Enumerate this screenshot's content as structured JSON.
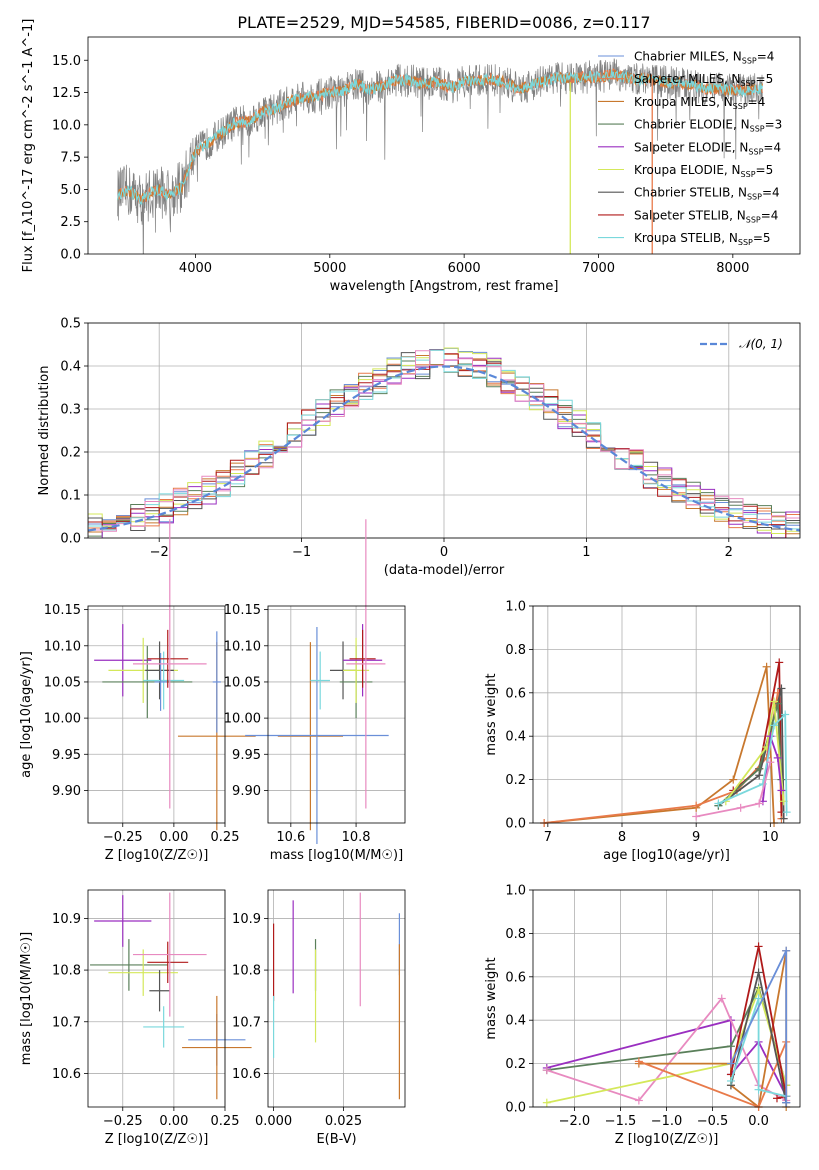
{
  "colors": {
    "Chabrier MILES": "#6a8fd8",
    "Salpeter MILES": "#e87a4a",
    "Kroupa MILES": "#c8782e",
    "Chabrier ELODIE": "#5a7f5a",
    "Salpeter ELODIE": "#9a2fc0",
    "Kroupa ELODIE": "#d4e85a",
    "Chabrier STELIB": "#555555",
    "Salpeter STELIB": "#b01a1a",
    "Kroupa STELIB": "#7ad8dc",
    "pink": "#e88ac0",
    "normal": "#5a88d8"
  },
  "chart_data": [
    {
      "id": "spectrum",
      "type": "line",
      "title": "PLATE=2529, MJD=54585, FIBERID=0086, z=0.117",
      "xlabel": "wavelength [Angstrom, rest frame]",
      "ylabel": "Flux [f_λ10^-17 erg cm^-2 s^-1 A^-1]",
      "xlim": [
        3200,
        8500
      ],
      "ylim": [
        0,
        16.8
      ],
      "xticks": [
        "4000",
        "5000",
        "6000",
        "7000",
        "8000"
      ],
      "yticks": [
        "0.0",
        "2.5",
        "5.0",
        "7.5",
        "10.0",
        "12.5",
        "15.0"
      ],
      "legend_position": "top-right",
      "legend": [
        {
          "name": "Chabrier MILES",
          "nssp": "4"
        },
        {
          "name": "Salpeter MILES",
          "nssp": "5"
        },
        {
          "name": "Kroupa MILES",
          "nssp": "4"
        },
        {
          "name": "Chabrier ELODIE",
          "nssp": "3"
        },
        {
          "name": "Salpeter ELODIE",
          "nssp": "4"
        },
        {
          "name": "Kroupa ELODIE",
          "nssp": "5"
        },
        {
          "name": "Chabrier STELIB",
          "nssp": "4"
        },
        {
          "name": "Salpeter STELIB",
          "nssp": "4"
        },
        {
          "name": "Kroupa STELIB",
          "nssp": "5"
        }
      ],
      "continuum": [
        [
          3420,
          4.6
        ],
        [
          3500,
          4.9
        ],
        [
          3600,
          4.2
        ],
        [
          3700,
          5.0
        ],
        [
          3800,
          4.6
        ],
        [
          3900,
          5.2
        ],
        [
          4000,
          8.0
        ],
        [
          4100,
          8.6
        ],
        [
          4200,
          9.4
        ],
        [
          4300,
          10.2
        ],
        [
          4400,
          10.3
        ],
        [
          4500,
          11.0
        ],
        [
          4600,
          11.3
        ],
        [
          4700,
          11.8
        ],
        [
          4800,
          12.1
        ],
        [
          4900,
          12.2
        ],
        [
          5000,
          12.5
        ],
        [
          5100,
          12.6
        ],
        [
          5200,
          13.2
        ],
        [
          5300,
          12.7
        ],
        [
          5400,
          13.1
        ],
        [
          5500,
          13.5
        ],
        [
          5600,
          13.4
        ],
        [
          5700,
          13.2
        ],
        [
          5800,
          13.3
        ],
        [
          5900,
          12.9
        ],
        [
          6000,
          13.3
        ],
        [
          6100,
          13.4
        ],
        [
          6200,
          13.5
        ],
        [
          6300,
          13.3
        ],
        [
          6400,
          12.8
        ],
        [
          6500,
          13.1
        ],
        [
          6600,
          13.4
        ],
        [
          6700,
          13.7
        ],
        [
          6800,
          13.6
        ],
        [
          6900,
          13.7
        ],
        [
          7000,
          13.7
        ],
        [
          7100,
          13.9
        ],
        [
          7200,
          13.7
        ],
        [
          7300,
          13.5
        ],
        [
          7400,
          13.6
        ],
        [
          7500,
          13.3
        ],
        [
          7600,
          13.2
        ],
        [
          7700,
          13.1
        ],
        [
          7800,
          12.8
        ],
        [
          7900,
          12.8
        ],
        [
          8000,
          12.7
        ],
        [
          8100,
          12.7
        ],
        [
          8200,
          12.8
        ]
      ]
    },
    {
      "id": "residuals",
      "type": "line",
      "xlabel": "(data-model)/error",
      "ylabel": "Normed distribution",
      "xlim": [
        -2.5,
        2.5
      ],
      "ylim": [
        0,
        0.5
      ],
      "xticks": [
        "−2",
        "−1",
        "0",
        "1",
        "2"
      ],
      "yticks": [
        "0.0",
        "0.1",
        "0.2",
        "0.3",
        "0.4",
        "0.5"
      ],
      "grid": true,
      "legend_position": "top-right",
      "legend_label": "𝒩(0, 1)"
    },
    {
      "id": "age_vs_Z",
      "type": "scatter",
      "xlabel": "Z [log10(Z/Z☉)]",
      "ylabel": "age [log10(age/yr)]",
      "xlim": [
        -0.42,
        0.25
      ],
      "ylim": [
        9.855,
        10.155
      ],
      "xticks": [
        "−0.25",
        "0.00",
        "0.25"
      ],
      "yticks": [
        "9.90",
        "9.95",
        "10.00",
        "10.05",
        "10.10",
        "10.15"
      ],
      "points": [
        {
          "c": "Salpeter ELODIE",
          "x": -0.25,
          "y": 10.08,
          "xerr": 0.14,
          "yerr": 0.05
        },
        {
          "c": "Kroupa ELODIE",
          "x": -0.15,
          "y": 10.066,
          "xerr": 0.17,
          "yerr": 0.045
        },
        {
          "c": "Chabrier ELODIE",
          "x": -0.13,
          "y": 10.05,
          "xerr": 0.22,
          "yerr": 0.05
        },
        {
          "c": "Chabrier STELIB",
          "x": -0.07,
          "y": 10.066,
          "xerr": 0.07,
          "yerr": 0.04
        },
        {
          "c": "Kroupa STELIB",
          "x": -0.05,
          "y": 10.052,
          "xerr": 0.1,
          "yerr": 0.04
        },
        {
          "c": "Chabrier MILES",
          "x": -0.065,
          "y": 10.05,
          "xerr": 0.03,
          "yerr": 0.04
        },
        {
          "c": "Salpeter STELIB",
          "x": -0.03,
          "y": 10.082,
          "xerr": 0.1,
          "yerr": 0.04
        },
        {
          "c": "pink",
          "x": -0.02,
          "y": 10.075,
          "xerr": 0.18,
          "yerr": 0.2
        },
        {
          "c": "Kroupa MILES",
          "x": 0.21,
          "y": 9.975,
          "xerr": 0.19,
          "yerr": 0.13
        },
        {
          "c": "Chabrier MILES",
          "x": 0.21,
          "y": 10.05,
          "xerr": 0.02,
          "yerr": 0.07
        }
      ]
    },
    {
      "id": "age_vs_mass",
      "type": "scatter",
      "xlabel": "mass [log10(M/M☉)]",
      "ylabel": "",
      "xlim": [
        10.53,
        10.95
      ],
      "ylim": [
        9.855,
        10.155
      ],
      "xticks": [
        "10.6",
        "10.8"
      ],
      "yticks": [
        "9.90",
        "9.95",
        "10.00",
        "10.05",
        "10.10",
        "10.15"
      ],
      "points": [
        {
          "c": "Kroupa MILES",
          "x": 10.66,
          "y": 9.975,
          "xerr": 0.1,
          "yerr": 0.13
        },
        {
          "c": "Chabrier MILES",
          "x": 10.68,
          "y": 9.976,
          "xerr": 0.22,
          "yerr": 0.15
        },
        {
          "c": "Kroupa STELIB",
          "x": 10.69,
          "y": 10.052,
          "xerr": 0.03,
          "yerr": 0.04
        },
        {
          "c": "Chabrier STELIB",
          "x": 10.76,
          "y": 10.066,
          "xerr": 0.04,
          "yerr": 0.04
        },
        {
          "c": "Chabrier ELODIE",
          "x": 10.8,
          "y": 10.05,
          "xerr": 0.05,
          "yerr": 0.05
        },
        {
          "c": "Kroupa ELODIE",
          "x": 10.8,
          "y": 10.066,
          "xerr": 0.04,
          "yerr": 0.045
        },
        {
          "c": "Salpeter ELODIE",
          "x": 10.82,
          "y": 10.08,
          "xerr": 0.06,
          "yerr": 0.05
        },
        {
          "c": "Salpeter STELIB",
          "x": 10.82,
          "y": 10.082,
          "xerr": 0.04,
          "yerr": 0.04
        },
        {
          "c": "pink",
          "x": 10.83,
          "y": 10.075,
          "xerr": 0.06,
          "yerr": 0.2
        }
      ]
    },
    {
      "id": "weight_vs_age",
      "type": "line",
      "xlabel": "age [log10(age/yr)]",
      "ylabel": "mass weight",
      "xlim": [
        6.8,
        10.4
      ],
      "ylim": [
        0,
        1.0
      ],
      "xticks": [
        "7",
        "8",
        "9",
        "10"
      ],
      "yticks": [
        "0.0",
        "0.2",
        "0.4",
        "0.6",
        "0.8",
        "1.0"
      ],
      "grid": true,
      "series": [
        {
          "c": "Kroupa MILES",
          "pts": [
            [
              6.95,
              0.0
            ],
            [
              9.0,
              0.07
            ],
            [
              9.5,
              0.2
            ],
            [
              9.95,
              0.72
            ],
            [
              10.05,
              0.0
            ]
          ]
        },
        {
          "c": "Salpeter MILES",
          "pts": [
            [
              6.95,
              0.0
            ],
            [
              9.0,
              0.08
            ],
            [
              9.55,
              0.15
            ],
            [
              9.95,
              0.3
            ],
            [
              10.1,
              0.6
            ],
            [
              10.15,
              0.02
            ]
          ]
        },
        {
          "c": "Salpeter STELIB",
          "pts": [
            [
              9.5,
              0.15
            ],
            [
              9.85,
              0.25
            ],
            [
              10.12,
              0.74
            ],
            [
              10.15,
              0.05
            ]
          ]
        },
        {
          "c": "Chabrier STELIB",
          "pts": [
            [
              9.3,
              0.08
            ],
            [
              9.85,
              0.22
            ],
            [
              10.15,
              0.62
            ],
            [
              10.18,
              0.02
            ]
          ]
        },
        {
          "c": "Chabrier ELODIE",
          "pts": [
            [
              9.3,
              0.08
            ],
            [
              9.85,
              0.25
            ],
            [
              10.1,
              0.55
            ],
            [
              10.15,
              0.2
            ]
          ]
        },
        {
          "c": "Kroupa ELODIE",
          "pts": [
            [
              9.4,
              0.1
            ],
            [
              9.95,
              0.35
            ],
            [
              10.05,
              0.56
            ],
            [
              10.18,
              0.1
            ]
          ]
        },
        {
          "c": "Salpeter ELODIE",
          "pts": [
            [
              9.9,
              0.1
            ],
            [
              10.0,
              0.4
            ],
            [
              10.1,
              0.3
            ],
            [
              10.15,
              0.15
            ]
          ]
        },
        {
          "c": "Kroupa STELIB",
          "pts": [
            [
              9.3,
              0.09
            ],
            [
              9.9,
              0.18
            ],
            [
              10.05,
              0.45
            ],
            [
              10.2,
              0.5
            ],
            [
              10.22,
              0.05
            ]
          ]
        },
        {
          "c": "pink",
          "pts": [
            [
              9.0,
              0.03
            ],
            [
              9.6,
              0.07
            ],
            [
              9.85,
              0.09
            ],
            [
              10.0,
              0.28
            ]
          ]
        }
      ]
    },
    {
      "id": "mass_vs_Z",
      "type": "scatter",
      "xlabel": "Z [log10(Z/Z☉)]",
      "ylabel": "mass [log10(M/M☉)]",
      "xlim": [
        -0.42,
        0.25
      ],
      "ylim": [
        10.535,
        10.955
      ],
      "xticks": [
        "−0.25",
        "0.00",
        "0.25"
      ],
      "yticks": [
        "10.6",
        "10.7",
        "10.8",
        "10.9"
      ],
      "points": [
        {
          "c": "Salpeter ELODIE",
          "x": -0.25,
          "y": 10.895,
          "xerr": 0.14,
          "yerr": 0.05
        },
        {
          "c": "Chabrier ELODIE",
          "x": -0.22,
          "y": 10.81,
          "xerr": 0.19,
          "yerr": 0.05
        },
        {
          "c": "Kroupa ELODIE",
          "x": -0.15,
          "y": 10.795,
          "xerr": 0.17,
          "yerr": 0.045
        },
        {
          "c": "Chabrier STELIB",
          "x": -0.07,
          "y": 10.76,
          "xerr": 0.05,
          "yerr": 0.04
        },
        {
          "c": "Kroupa STELIB",
          "x": -0.05,
          "y": 10.69,
          "xerr": 0.1,
          "yerr": 0.04
        },
        {
          "c": "Salpeter STELIB",
          "x": -0.03,
          "y": 10.815,
          "xerr": 0.1,
          "yerr": 0.04
        },
        {
          "c": "pink",
          "x": -0.02,
          "y": 10.83,
          "xerr": 0.18,
          "yerr": 0.12
        },
        {
          "c": "Chabrier MILES",
          "x": 0.21,
          "y": 10.665,
          "xerr": 0.14,
          "yerr": 0.05
        },
        {
          "c": "Kroupa MILES",
          "x": 0.21,
          "y": 10.65,
          "xerr": 0.17,
          "yerr": 0.1
        }
      ]
    },
    {
      "id": "mass_vs_ebv",
      "type": "scatter",
      "xlabel": "E(B-V)",
      "ylabel": "",
      "xlim": [
        -0.002,
        0.047
      ],
      "ylim": [
        10.535,
        10.955
      ],
      "xticks": [
        "0.000",
        "0.025"
      ],
      "yticks": [
        "10.6",
        "10.7",
        "10.8",
        "10.9"
      ],
      "points": [
        {
          "c": "Salpeter STELIB",
          "x": 0.0,
          "y": 10.815,
          "xerr": 0.0,
          "yerr": 0.075
        },
        {
          "c": "Kroupa STELIB",
          "x": 0.0,
          "y": 10.69,
          "xerr": 0.0,
          "yerr": 0.06
        },
        {
          "c": "Salpeter ELODIE",
          "x": 0.007,
          "y": 10.845,
          "xerr": 0.0,
          "yerr": 0.09
        },
        {
          "c": "Chabrier ELODIE",
          "x": 0.015,
          "y": 10.81,
          "xerr": 0.0,
          "yerr": 0.05
        },
        {
          "c": "Kroupa ELODIE",
          "x": 0.015,
          "y": 10.75,
          "xerr": 0.0,
          "yerr": 0.09
        },
        {
          "c": "pink",
          "x": 0.031,
          "y": 10.84,
          "xerr": 0.0,
          "yerr": 0.11
        },
        {
          "c": "Chabrier MILES",
          "x": 0.045,
          "y": 10.85,
          "xerr": 0.0,
          "yerr": 0.06
        },
        {
          "c": "Kroupa MILES",
          "x": 0.045,
          "y": 10.7,
          "xerr": 0.0,
          "yerr": 0.15
        }
      ]
    },
    {
      "id": "weight_vs_Z",
      "type": "line",
      "xlabel": "Z [log10(Z/Z☉)]",
      "ylabel": "mass weight",
      "xlim": [
        -2.45,
        0.45
      ],
      "ylim": [
        0,
        1.0
      ],
      "xticks": [
        "−2.0",
        "−1.5",
        "−1.0",
        "−0.5",
        "0.0"
      ],
      "yticks": [
        "0.0",
        "0.2",
        "0.4",
        "0.6",
        "0.8",
        "1.0"
      ],
      "grid": true,
      "series": [
        {
          "c": "Salpeter ELODIE",
          "pts": [
            [
              -2.3,
              0.18
            ],
            [
              -0.3,
              0.4
            ],
            [
              -0.3,
              0.15
            ],
            [
              0.0,
              0.3
            ],
            [
              0.3,
              0.05
            ]
          ]
        },
        {
          "c": "Chabrier ELODIE",
          "pts": [
            [
              -2.3,
              0.17
            ],
            [
              -0.3,
              0.28
            ],
            [
              0.0,
              0.55
            ],
            [
              0.3,
              0.1
            ]
          ]
        },
        {
          "c": "pink",
          "pts": [
            [
              -2.3,
              0.17
            ],
            [
              -1.3,
              0.03
            ],
            [
              -0.4,
              0.5
            ],
            [
              0.0,
              0.1
            ],
            [
              0.3,
              0.03
            ]
          ]
        },
        {
          "c": "Kroupa ELODIE",
          "pts": [
            [
              -2.3,
              0.02
            ],
            [
              -0.3,
              0.2
            ],
            [
              0.0,
              0.54
            ],
            [
              0.3,
              0.1
            ]
          ]
        },
        {
          "c": "Kroupa MILES",
          "pts": [
            [
              -1.3,
              0.2
            ],
            [
              -0.3,
              0.2
            ],
            [
              -0.3,
              0.1
            ],
            [
              -0.0,
              0.0
            ],
            [
              0.3,
              0.72
            ],
            [
              0.3,
              0.0
            ]
          ]
        },
        {
          "c": "Salpeter MILES",
          "pts": [
            [
              -1.3,
              0.21
            ],
            [
              0.0,
              0.0
            ],
            [
              0.3,
              0.3
            ],
            [
              0.3,
              0.05
            ]
          ]
        },
        {
          "c": "Salpeter STELIB",
          "pts": [
            [
              -0.3,
              0.15
            ],
            [
              0.0,
              0.74
            ],
            [
              0.3,
              0.05
            ],
            [
              0.2,
              0.04
            ]
          ]
        },
        {
          "c": "Chabrier STELIB",
          "pts": [
            [
              -0.3,
              0.1
            ],
            [
              0.0,
              0.62
            ],
            [
              0.3,
              0.02
            ]
          ]
        },
        {
          "c": "Kroupa STELIB",
          "pts": [
            [
              -0.3,
              0.12
            ],
            [
              0.0,
              0.5
            ],
            [
              0.0,
              0.08
            ],
            [
              0.3,
              0.05
            ]
          ]
        },
        {
          "c": "Chabrier MILES",
          "pts": [
            [
              -0.3,
              0.2
            ],
            [
              0.3,
              0.72
            ],
            [
              0.3,
              0.02
            ]
          ]
        }
      ]
    }
  ]
}
